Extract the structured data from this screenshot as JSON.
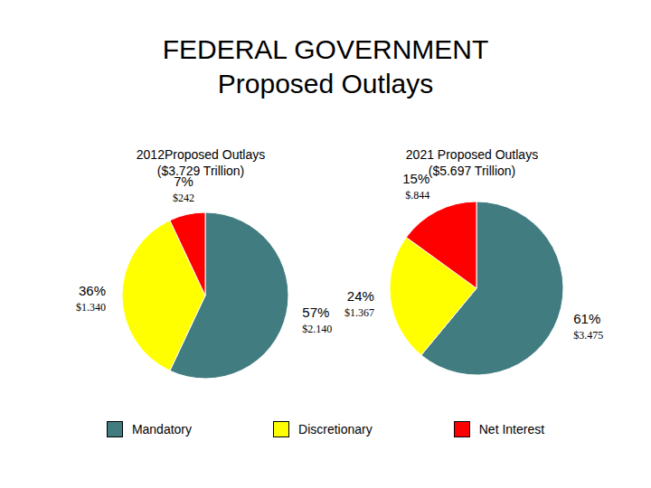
{
  "title": "FEDERAL GOVERNMENT",
  "subtitle": "Proposed Outlays",
  "chart_data": [
    {
      "type": "pie",
      "title": "2012Proposed Outlays",
      "subtitle": "($3.729 Trillion)",
      "categories": [
        "Mandatory",
        "Discretionary",
        "Net Interest"
      ],
      "values": [
        57,
        36,
        7
      ],
      "value_labels": [
        "57%",
        "36%",
        "7%"
      ],
      "amount_labels": [
        "$2.140",
        "$1.340",
        "$242"
      ],
      "colors": [
        "#417c80",
        "#ffff00",
        "#ff0000"
      ],
      "data_labels": true,
      "legend": "bottom"
    },
    {
      "type": "pie",
      "title": "2021 Proposed Outlays",
      "subtitle": "($5.697 Trillion)",
      "categories": [
        "Mandatory",
        "Discretionary",
        "Net Interest"
      ],
      "values": [
        61,
        24,
        15
      ],
      "value_labels": [
        "61%",
        "24%",
        "15%"
      ],
      "amount_labels": [
        "$3.475",
        "$1.367",
        "$.844"
      ],
      "colors": [
        "#417c80",
        "#ffff00",
        "#ff0000"
      ],
      "data_labels": true,
      "legend": "bottom"
    }
  ]
}
